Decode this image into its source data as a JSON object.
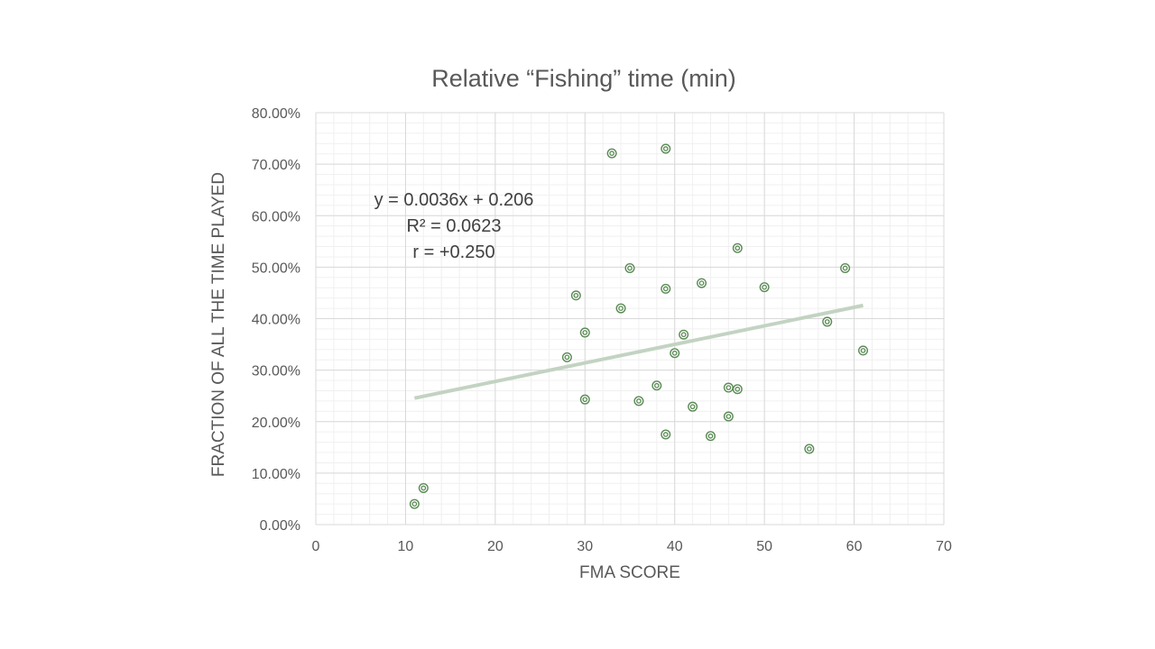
{
  "colors": {
    "background": "#ffffff",
    "text": "#595959",
    "annotation_text": "#404040",
    "major_grid": "#d9d9d9",
    "minor_grid": "#f0f0f0",
    "marker": "#5a8a55",
    "trendline": "#c3d3c2"
  },
  "chart_data": {
    "type": "scatter",
    "title": "Relative “Fishing” time (min)",
    "xlabel": "FMA SCORE",
    "ylabel": "FRACTION OF ALL THE TIME PLAYED",
    "xlim": [
      0,
      70
    ],
    "ylim": [
      0,
      0.8
    ],
    "x_ticks": [
      0,
      10,
      20,
      30,
      40,
      50,
      60,
      70
    ],
    "x_tick_labels": [
      "0",
      "10",
      "20",
      "30",
      "40",
      "50",
      "60",
      "70"
    ],
    "y_ticks": [
      0,
      0.1,
      0.2,
      0.3,
      0.4,
      0.5,
      0.6,
      0.7,
      0.8
    ],
    "y_tick_labels": [
      "0.00%",
      "10.00%",
      "20.00%",
      "30.00%",
      "40.00%",
      "50.00%",
      "60.00%",
      "70.00%",
      "80.00%"
    ],
    "grid": true,
    "minor_grid": true,
    "legend": "none",
    "marker": "double-circle",
    "points": [
      {
        "x": 11,
        "y": 0.04
      },
      {
        "x": 12,
        "y": 0.071
      },
      {
        "x": 28,
        "y": 0.325
      },
      {
        "x": 29,
        "y": 0.445
      },
      {
        "x": 30,
        "y": 0.373
      },
      {
        "x": 30,
        "y": 0.243
      },
      {
        "x": 33,
        "y": 0.721
      },
      {
        "x": 34,
        "y": 0.42
      },
      {
        "x": 35,
        "y": 0.498
      },
      {
        "x": 36,
        "y": 0.24
      },
      {
        "x": 38,
        "y": 0.27
      },
      {
        "x": 39,
        "y": 0.73
      },
      {
        "x": 39,
        "y": 0.458
      },
      {
        "x": 39,
        "y": 0.175
      },
      {
        "x": 40,
        "y": 0.333
      },
      {
        "x": 41,
        "y": 0.369
      },
      {
        "x": 42,
        "y": 0.229
      },
      {
        "x": 43,
        "y": 0.469
      },
      {
        "x": 44,
        "y": 0.172
      },
      {
        "x": 46,
        "y": 0.266
      },
      {
        "x": 46,
        "y": 0.21
      },
      {
        "x": 47,
        "y": 0.537
      },
      {
        "x": 47,
        "y": 0.263
      },
      {
        "x": 50,
        "y": 0.461
      },
      {
        "x": 55,
        "y": 0.147
      },
      {
        "x": 57,
        "y": 0.394
      },
      {
        "x": 59,
        "y": 0.498
      },
      {
        "x": 61,
        "y": 0.338
      }
    ],
    "trendline": {
      "type": "linear",
      "slope": 0.0036,
      "intercept": 0.206,
      "x_range": [
        11,
        61
      ]
    },
    "annotations": [
      "y = 0.0036x + 0.206",
      "R² = 0.0623",
      "r = +0.250"
    ]
  }
}
